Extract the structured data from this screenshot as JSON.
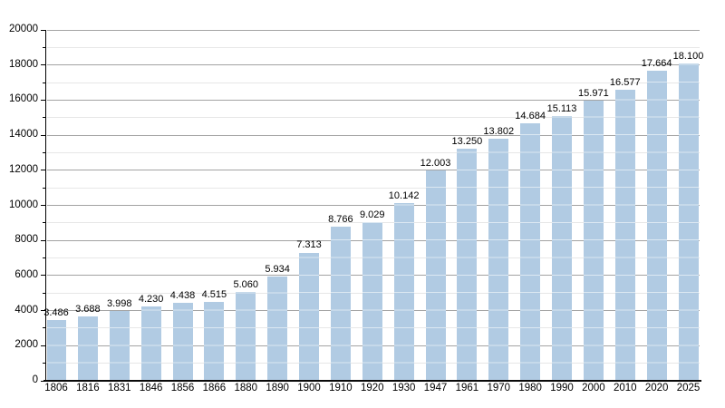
{
  "chart_data": {
    "type": "bar",
    "title": "",
    "xlabel": "",
    "ylabel": "",
    "categories": [
      "1806",
      "1816",
      "1831",
      "1846",
      "1856",
      "1866",
      "1880",
      "1890",
      "1900",
      "1910",
      "1920",
      "1930",
      "1947",
      "1961",
      "1970",
      "1980",
      "1990",
      "2000",
      "2010",
      "2020",
      "2025"
    ],
    "values": [
      3486,
      3688,
      3998,
      4230,
      4438,
      4515,
      5060,
      5934,
      7313,
      8766,
      9029,
      10142,
      12003,
      13250,
      13802,
      14684,
      15113,
      15971,
      16577,
      17664,
      18100
    ],
    "bar_labels": [
      "3.486",
      "3.688",
      "3.998",
      "4.230",
      "4.438",
      "4.515",
      "5.060",
      "5.934",
      "7.313",
      "8.766",
      "9.029",
      "10.142",
      "12.003",
      "13.250",
      "13.802",
      "14.684",
      "15.113",
      "15.971",
      "16.577",
      "17.664",
      "18.100"
    ],
    "ylim": [
      0,
      20000
    ],
    "y_major_step": 2000,
    "y_minor_step": 1000,
    "y_tick_labels": [
      "0",
      "2000",
      "4000",
      "6000",
      "8000",
      "10000",
      "12000",
      "14000",
      "16000",
      "18000",
      "20000"
    ],
    "grid": "horizontal major+minor, gridlines visible through bars",
    "legend_position": "none",
    "colors": {
      "bar": "#b1cbe3",
      "grid_major": "#a3a3a3",
      "grid_minor": "#e7e7e7",
      "axis": "#000000",
      "text": "#000000",
      "background": "#ffffff"
    }
  }
}
